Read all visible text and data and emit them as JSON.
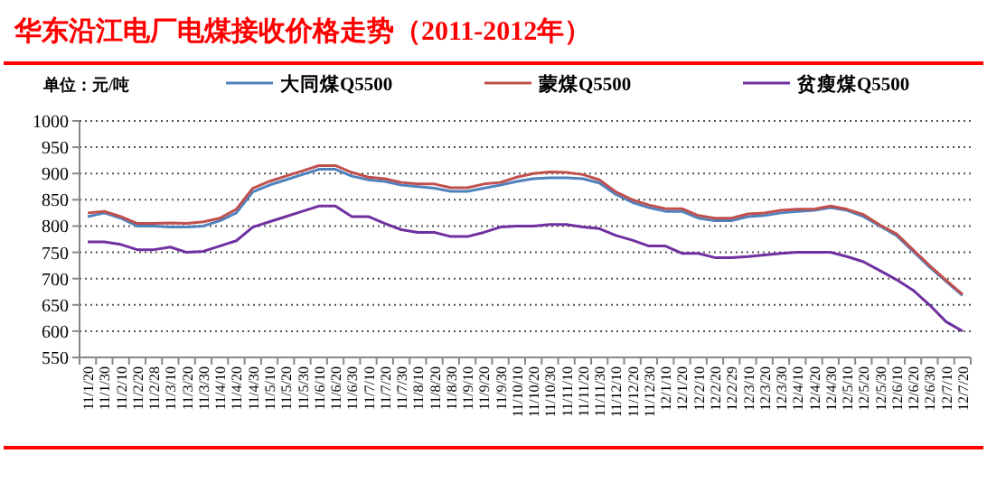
{
  "chart_data": {
    "type": "line",
    "title": "华东沿江电厂电煤接收价格走势（2011-2012年）",
    "ylabel": "单位：元/吨",
    "categories": [
      "11/1/20",
      "11/1/30",
      "11/2/10",
      "11/2/20",
      "11/2/28",
      "11/3/10",
      "11/3/20",
      "11/3/30",
      "11/4/10",
      "11/4/20",
      "11/4/30",
      "11/5/10",
      "11/5/20",
      "11/5/30",
      "11/6/10",
      "11/6/20",
      "11/6/30",
      "11/7/10",
      "11/7/20",
      "11/7/30",
      "11/8/10",
      "11/8/20",
      "11/8/30",
      "11/9/10",
      "11/9/20",
      "11/9/30",
      "11/10/10",
      "11/10/20",
      "11/10/30",
      "11/11/10",
      "11/11/20",
      "11/11/30",
      "11/12/10",
      "11/12/20",
      "11/12/30",
      "12/1/10",
      "12/1/20",
      "12/2/10",
      "12/2/20",
      "12/2/29",
      "12/3/10",
      "12/3/20",
      "12/3/30",
      "12/4/10",
      "12/4/20",
      "12/4/30",
      "12/5/10",
      "12/5/20",
      "12/5/30",
      "12/6/10",
      "12/6/20",
      "12/6/30",
      "12/7/10",
      "12/7/20"
    ],
    "series": [
      {
        "name": "大同煤Q5500",
        "color": "#4f81bd",
        "values": [
          818,
          825,
          815,
          800,
          800,
          798,
          798,
          800,
          810,
          825,
          865,
          878,
          888,
          898,
          908,
          908,
          895,
          888,
          885,
          878,
          875,
          872,
          866,
          866,
          872,
          878,
          885,
          890,
          892,
          892,
          890,
          882,
          860,
          845,
          835,
          828,
          828,
          815,
          810,
          810,
          818,
          820,
          825,
          828,
          830,
          835,
          830,
          818,
          800,
          782,
          752,
          722,
          695,
          668
        ]
      },
      {
        "name": "蒙煤Q5500",
        "color": "#c0504d",
        "values": [
          825,
          828,
          818,
          805,
          805,
          806,
          805,
          808,
          815,
          832,
          872,
          885,
          895,
          905,
          915,
          915,
          902,
          893,
          890,
          883,
          880,
          880,
          873,
          873,
          880,
          883,
          893,
          900,
          903,
          902,
          898,
          888,
          865,
          850,
          840,
          833,
          833,
          820,
          815,
          815,
          823,
          825,
          830,
          832,
          832,
          838,
          832,
          822,
          802,
          785,
          755,
          725,
          697,
          670
        ]
      },
      {
        "name": "贫瘦煤Q5500",
        "color": "#7030a0",
        "values": [
          770,
          770,
          765,
          755,
          755,
          760,
          750,
          752,
          762,
          772,
          798,
          808,
          818,
          828,
          838,
          838,
          818,
          818,
          805,
          793,
          788,
          788,
          780,
          780,
          788,
          798,
          800,
          800,
          803,
          803,
          798,
          795,
          782,
          773,
          762,
          762,
          748,
          748,
          740,
          740,
          742,
          745,
          748,
          750,
          750,
          750,
          742,
          732,
          715,
          698,
          678,
          650,
          618,
          600
        ]
      }
    ],
    "ylim": [
      550,
      1000
    ],
    "yticks": [
      550,
      600,
      650,
      700,
      750,
      800,
      850,
      900,
      950,
      1000
    ],
    "grid": "y",
    "legend": "top",
    "marker": "none",
    "line_style": "solid"
  }
}
